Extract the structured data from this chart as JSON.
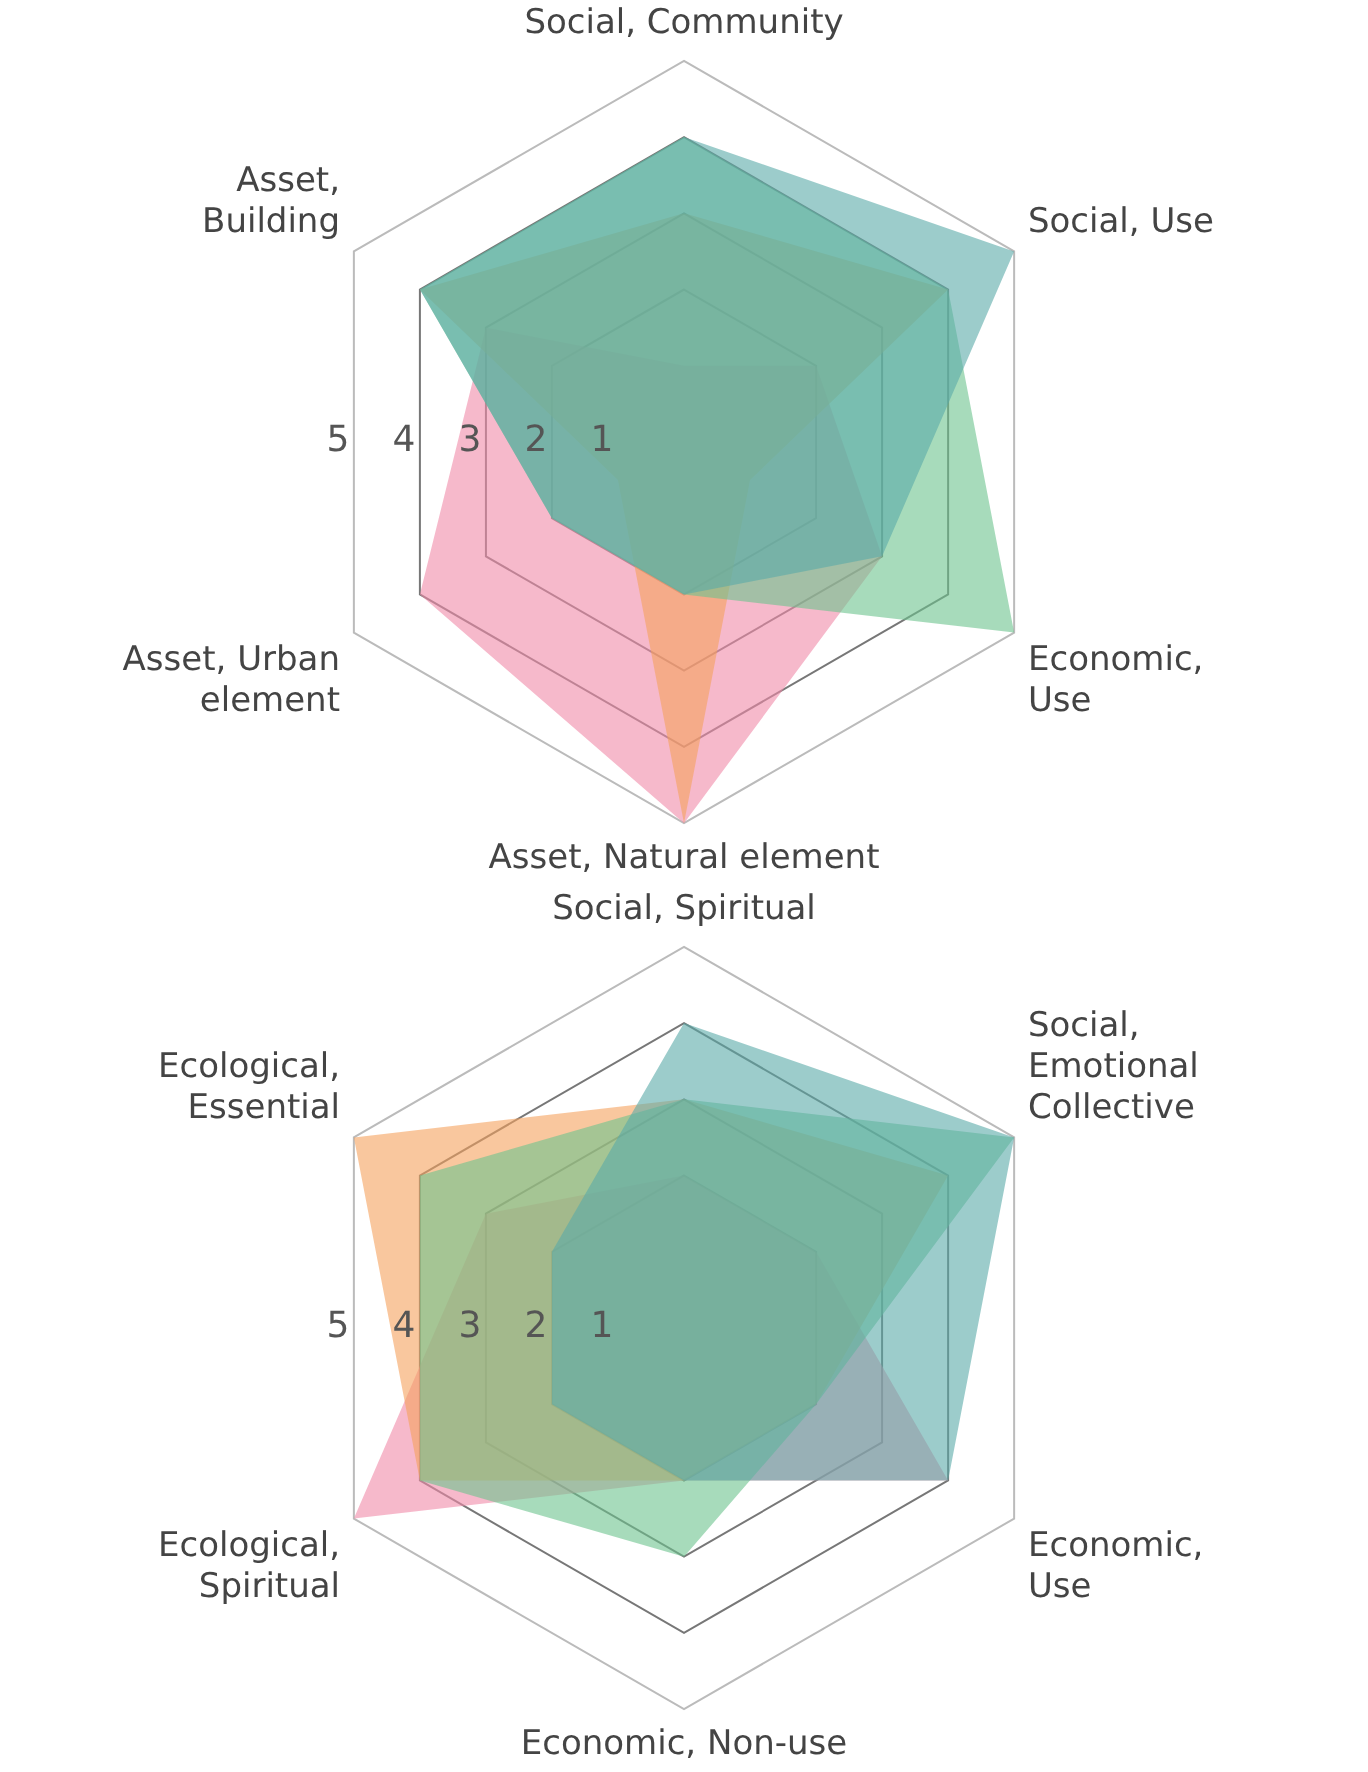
{
  "chart_data": [
    {
      "type": "radar",
      "categories": [
        "Social, Community",
        "Social, Use",
        "Economic, Use",
        "Asset, Natural element",
        "Asset, Urban element",
        "Asset, Building"
      ],
      "ylim": [
        0,
        5
      ],
      "yticks": [
        1,
        2,
        3,
        4,
        5
      ],
      "grid": true,
      "legend": false,
      "series": [
        {
          "color": "#5aaaa8",
          "values": [
            4,
            5,
            3,
            2,
            2,
            4
          ]
        },
        {
          "color": "#6cc38e",
          "values": [
            4,
            4,
            5,
            2,
            2,
            4
          ]
        },
        {
          "color": "#f5a25e",
          "values": [
            3,
            4,
            1,
            5,
            1,
            4
          ]
        },
        {
          "color": "#f08aa8",
          "values": [
            1,
            2,
            3,
            5,
            4,
            3
          ]
        }
      ]
    },
    {
      "type": "radar",
      "categories": [
        "Social, Spiritual",
        "Social, Emotional Collective",
        "Economic, Use",
        "Economic, Non-use",
        "Ecological, Spiritual",
        "Ecological, Essential"
      ],
      "ylim": [
        0,
        5
      ],
      "yticks": [
        1,
        2,
        3,
        4,
        5
      ],
      "grid": true,
      "legend": false,
      "series": [
        {
          "color": "#5aaaa8",
          "values": [
            4,
            5,
            4,
            2,
            2,
            2
          ]
        },
        {
          "color": "#6cc38e",
          "values": [
            3,
            5,
            2,
            3,
            4,
            4
          ]
        },
        {
          "color": "#f5a25e",
          "values": [
            3,
            4,
            2,
            2,
            4,
            5
          ]
        },
        {
          "color": "#f08aa8",
          "values": [
            2,
            2,
            4,
            2,
            5,
            3
          ]
        }
      ]
    }
  ]
}
